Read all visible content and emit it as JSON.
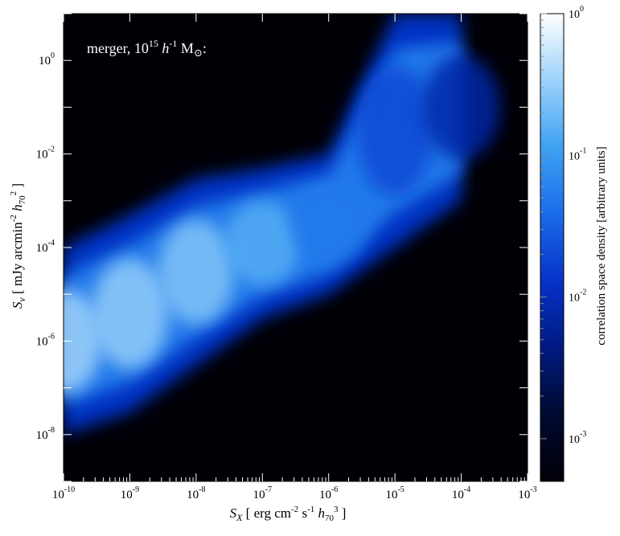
{
  "chart_data": {
    "type": "heatmap",
    "annotation": {
      "prefix": "merger, 10",
      "exp": "15",
      "mid": " h",
      "mid_exp": "-1",
      "suffix": " M",
      "sun": "⊙",
      "colon": ":"
    },
    "x_axis": {
      "scale": "log",
      "range": [
        1e-10,
        0.001
      ],
      "label": {
        "sym": "S",
        "sub": "X",
        "open": " [ erg cm",
        "e1": "-2",
        "p2": " s",
        "e2": "-1",
        "p3": " h",
        "sub2": "70",
        "e3": "3",
        "close": " ]"
      },
      "ticks": [
        {
          "value": 1e-10,
          "base": "10",
          "exp": "-10"
        },
        {
          "value": 1e-09,
          "base": "10",
          "exp": "-9"
        },
        {
          "value": 1e-08,
          "base": "10",
          "exp": "-8"
        },
        {
          "value": 1e-07,
          "base": "10",
          "exp": "-7"
        },
        {
          "value": 1e-06,
          "base": "10",
          "exp": "-6"
        },
        {
          "value": 1e-05,
          "base": "10",
          "exp": "-5"
        },
        {
          "value": 0.0001,
          "base": "10",
          "exp": "-4"
        },
        {
          "value": 0.001,
          "base": "10",
          "exp": "-3"
        }
      ]
    },
    "y_axis": {
      "scale": "log",
      "range": [
        1e-09,
        10.0
      ],
      "label": {
        "sym": "S",
        "sub": "ν",
        "open": " [ mJy arcmin",
        "e1": "-2",
        "p2": " h",
        "sub2": "70",
        "e2": "2",
        "close": " ]"
      },
      "ticks": [
        {
          "value": 1e-08,
          "base": "10",
          "exp": "-8"
        },
        {
          "value": 1e-06,
          "base": "10",
          "exp": "-6"
        },
        {
          "value": 0.0001,
          "base": "10",
          "exp": "-4"
        },
        {
          "value": 0.01,
          "base": "10",
          "exp": "-2"
        },
        {
          "value": 1,
          "base": "10",
          "exp": "0"
        }
      ]
    },
    "colorbar": {
      "scale": "log",
      "range": [
        0.0005,
        1
      ],
      "label": "correlation space density [arbitrary units]",
      "colors": [
        "#000008",
        "#000a30",
        "#001a80",
        "#0632c8",
        "#1a6ce8",
        "#3ea2f2",
        "#9cd2fa",
        "#ffffff"
      ],
      "ticks": [
        {
          "value": 0.001,
          "base": "10",
          "exp": "-3"
        },
        {
          "value": 0.01,
          "base": "10",
          "exp": "-2"
        },
        {
          "value": 0.1,
          "base": "10",
          "exp": "-1"
        },
        {
          "value": 1,
          "base": "10",
          "exp": "0"
        }
      ]
    },
    "density_ridge": [
      {
        "x": 1e-10,
        "y_low": 1e-08,
        "y_high": 0.0001,
        "peak": 0.35
      },
      {
        "x": 1e-09,
        "y_low": 3e-08,
        "y_high": 0.0005,
        "peak": 0.3
      },
      {
        "x": 1e-08,
        "y_low": 3e-07,
        "y_high": 0.003,
        "peak": 0.25
      },
      {
        "x": 1e-07,
        "y_low": 3e-06,
        "y_high": 0.005,
        "peak": 0.15
      },
      {
        "x": 1e-06,
        "y_low": 1e-05,
        "y_high": 0.01,
        "peak": 0.05
      },
      {
        "x": 1e-05,
        "y_low": 0.0001,
        "y_high": 10.0,
        "peak": 0.02
      },
      {
        "x": 0.0001,
        "y_low": 0.001,
        "y_high": 10.0,
        "peak": 0.008
      }
    ]
  }
}
